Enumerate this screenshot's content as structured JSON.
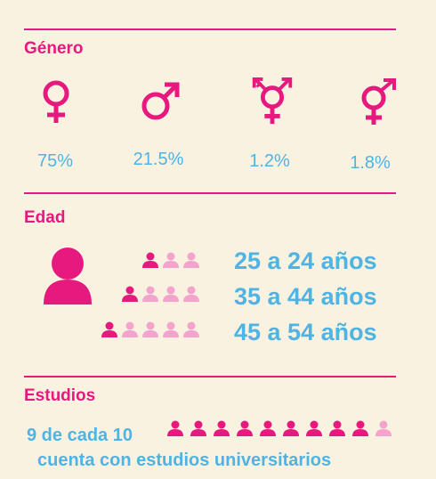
{
  "colors": {
    "background": "#faf2e1",
    "accent": "#e6197f",
    "light": "#f4a3cc",
    "blue": "#4fb3e3"
  },
  "genero": {
    "title": "Género",
    "items": [
      {
        "icon": "female-symbol-icon",
        "pct": "75%"
      },
      {
        "icon": "male-symbol-icon",
        "pct": "21.5%"
      },
      {
        "icon": "transgender-symbol-icon",
        "pct": "1.2%"
      },
      {
        "icon": "androgyne-symbol-icon",
        "pct": "1.8%"
      }
    ]
  },
  "edad": {
    "title": "Edad",
    "rows": [
      {
        "label": "25 a 24 años",
        "filled": 1,
        "total": 3
      },
      {
        "label": "35 a 44 años",
        "filled": 1,
        "total": 4
      },
      {
        "label": "45 a 54 años",
        "filled": 1,
        "total": 5
      }
    ]
  },
  "estudios": {
    "title": "Estudios",
    "line1": "9 de cada 10",
    "line2": "cuenta con estudios universitarios",
    "filled": 9,
    "total": 10
  }
}
